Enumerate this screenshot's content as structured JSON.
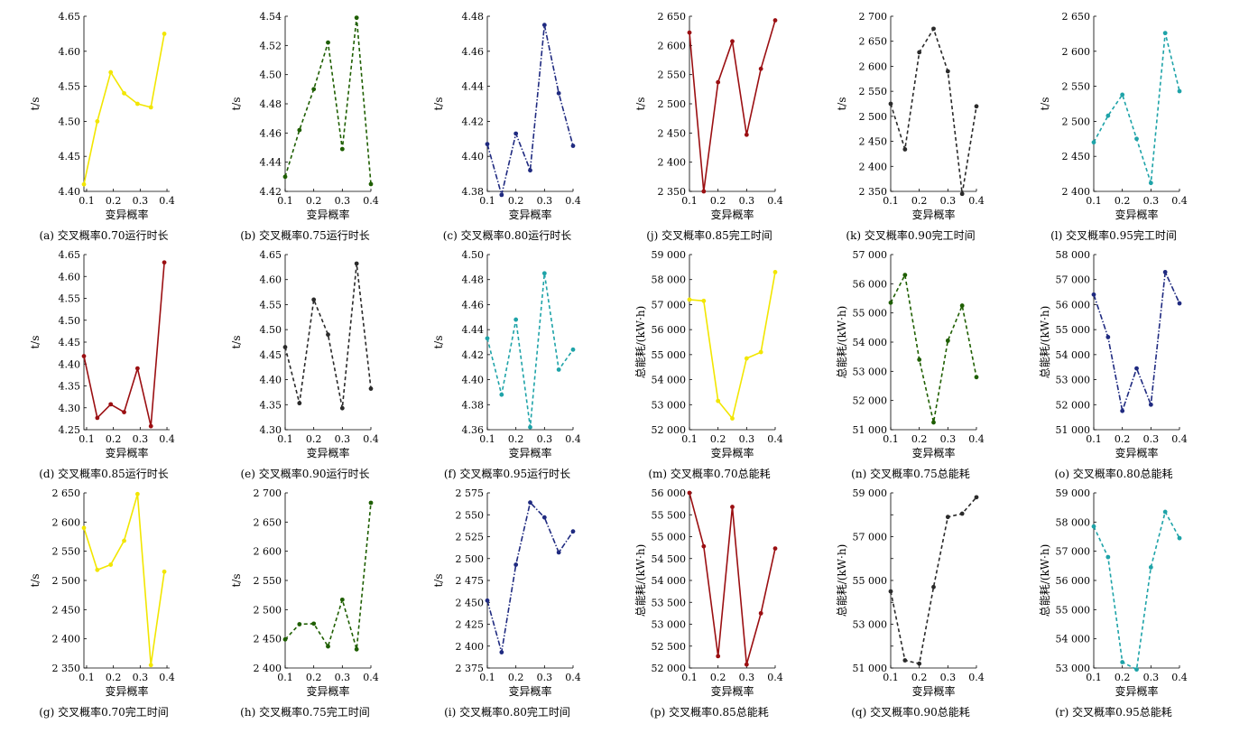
{
  "chart_data": [
    {
      "id": "a",
      "caption": "(a) 交叉概率0.70运行时长",
      "type": "line",
      "xlabel": "变异概率",
      "ylabel": "t/s",
      "xticks": [
        "0.1",
        "0.2",
        "0.3",
        "0.4"
      ],
      "yticks": [
        "4.40",
        "4.45",
        "4.50",
        "4.55",
        "4.60",
        "4.65"
      ],
      "xlim": [
        0.09,
        0.41
      ],
      "ylim": [
        4.4,
        4.65
      ],
      "color": "#f2e600",
      "dash": "solid",
      "x": [
        0.09,
        0.14,
        0.19,
        0.24,
        0.29,
        0.34,
        0.39
      ],
      "y": [
        4.41,
        4.5,
        4.57,
        4.54,
        4.525,
        4.52,
        4.625
      ]
    },
    {
      "id": "b",
      "caption": "(b) 交叉概率0.75运行时长",
      "type": "line",
      "xlabel": "变异概率",
      "ylabel": "t/s",
      "xticks": [
        "0.1",
        "0.2",
        "0.3",
        "0.4"
      ],
      "yticks": [
        "4.42",
        "4.44",
        "4.46",
        "4.48",
        "4.50",
        "4.52",
        "4.54"
      ],
      "xlim": [
        0.1,
        0.4
      ],
      "ylim": [
        4.42,
        4.54
      ],
      "color": "#1e5e00",
      "dash": "dash",
      "x": [
        0.1,
        0.15,
        0.2,
        0.25,
        0.3,
        0.35,
        0.4
      ],
      "y": [
        4.43,
        4.462,
        4.49,
        4.522,
        4.449,
        4.539,
        4.425
      ]
    },
    {
      "id": "c",
      "caption": "(c) 交叉概率0.80运行时长",
      "type": "line",
      "xlabel": "变异概率",
      "ylabel": "t/s",
      "xticks": [
        "0.1",
        "0.2",
        "0.3",
        "0.4"
      ],
      "yticks": [
        "4.38",
        "4.40",
        "4.42",
        "4.44",
        "4.46",
        "4.48"
      ],
      "xlim": [
        0.1,
        0.4
      ],
      "ylim": [
        4.38,
        4.48
      ],
      "color": "#1f2a80",
      "dash": "dashdot",
      "x": [
        0.1,
        0.15,
        0.2,
        0.25,
        0.3,
        0.35,
        0.4
      ],
      "y": [
        4.407,
        4.378,
        4.413,
        4.392,
        4.475,
        4.436,
        4.406
      ]
    },
    {
      "id": "j",
      "caption": "(j) 交叉概率0.85完工时间",
      "type": "line",
      "xlabel": "变异概率",
      "ylabel": "t/s",
      "xticks": [
        "0.1",
        "0.2",
        "0.3",
        "0.4"
      ],
      "yticks": [
        "2 350",
        "2 400",
        "2 450",
        "2 500",
        "2 550",
        "2 600",
        "2 650"
      ],
      "xlim": [
        0.1,
        0.4
      ],
      "ylim": [
        2350,
        2650
      ],
      "color": "#9b0f12",
      "dash": "solid",
      "x": [
        0.1,
        0.15,
        0.2,
        0.25,
        0.3,
        0.35,
        0.4
      ],
      "y": [
        2622,
        2350,
        2537,
        2607,
        2447,
        2560,
        2643
      ]
    },
    {
      "id": "k",
      "caption": "(k) 交叉概率0.90完工时间",
      "type": "line",
      "xlabel": "变异概率",
      "ylabel": "t/s",
      "xticks": [
        "0.1",
        "0.2",
        "0.3",
        "0.4"
      ],
      "yticks": [
        "2 350",
        "2 400",
        "2 450",
        "2 500",
        "2 550",
        "2 600",
        "2 650",
        "2 700"
      ],
      "xlim": [
        0.1,
        0.4
      ],
      "ylim": [
        2350,
        2700
      ],
      "color": "#2a2a2a",
      "dash": "dash",
      "x": [
        0.1,
        0.15,
        0.2,
        0.25,
        0.3,
        0.35,
        0.4
      ],
      "y": [
        2525,
        2434,
        2628,
        2675,
        2590,
        2345,
        2520
      ]
    },
    {
      "id": "l",
      "caption": "(l) 交叉概率0.95完工时间",
      "type": "line",
      "xlabel": "变异概率",
      "ylabel": "t/s",
      "xticks": [
        "0.1",
        "0.2",
        "0.3",
        "0.4"
      ],
      "yticks": [
        "2 400",
        "2 450",
        "2 500",
        "2 550",
        "2 600",
        "2 650"
      ],
      "xlim": [
        0.1,
        0.4
      ],
      "ylim": [
        2400,
        2650
      ],
      "color": "#1ea3a8",
      "dash": "dash",
      "x": [
        0.1,
        0.15,
        0.2,
        0.25,
        0.3,
        0.35,
        0.4
      ],
      "y": [
        2470,
        2508,
        2538,
        2475,
        2412,
        2626,
        2543
      ]
    },
    {
      "id": "d",
      "caption": "(d) 交叉概率0.85运行时长",
      "type": "line",
      "xlabel": "变异概率",
      "ylabel": "t/s",
      "xticks": [
        "0.1",
        "0.2",
        "0.3",
        "0.4"
      ],
      "yticks": [
        "4.25",
        "4.30",
        "4.35",
        "4.40",
        "4.45",
        "4.50",
        "4.55",
        "4.60",
        "4.65"
      ],
      "xlim": [
        0.09,
        0.41
      ],
      "ylim": [
        4.25,
        4.65
      ],
      "color": "#9b0f12",
      "dash": "solid",
      "x": [
        0.09,
        0.14,
        0.19,
        0.24,
        0.29,
        0.34,
        0.39
      ],
      "y": [
        4.418,
        4.277,
        4.308,
        4.29,
        4.39,
        4.258,
        4.632
      ]
    },
    {
      "id": "e",
      "caption": "(e) 交叉概率0.90运行时长",
      "type": "line",
      "xlabel": "变异概率",
      "ylabel": "t/s",
      "xticks": [
        "0.1",
        "0.2",
        "0.3",
        "0.4"
      ],
      "yticks": [
        "4.30",
        "4.35",
        "4.40",
        "4.45",
        "4.50",
        "4.55",
        "4.60",
        "4.65"
      ],
      "xlim": [
        0.1,
        0.4
      ],
      "ylim": [
        4.3,
        4.65
      ],
      "color": "#2a2a2a",
      "dash": "dash",
      "x": [
        0.1,
        0.15,
        0.2,
        0.25,
        0.3,
        0.35,
        0.4
      ],
      "y": [
        4.465,
        4.353,
        4.56,
        4.49,
        4.343,
        4.632,
        4.382
      ]
    },
    {
      "id": "f",
      "caption": "(f) 交叉概率0.95运行时长",
      "type": "line",
      "xlabel": "变异概率",
      "ylabel": "t/s",
      "xticks": [
        "0.1",
        "0.2",
        "0.3",
        "0.4"
      ],
      "yticks": [
        "4.36",
        "4.38",
        "4.40",
        "4.42",
        "4.44",
        "4.46",
        "4.48",
        "4.50"
      ],
      "xlim": [
        0.1,
        0.4
      ],
      "ylim": [
        4.36,
        4.5
      ],
      "color": "#1ea3a8",
      "dash": "dash",
      "x": [
        0.1,
        0.15,
        0.2,
        0.25,
        0.3,
        0.35,
        0.4
      ],
      "y": [
        4.433,
        4.388,
        4.448,
        4.362,
        4.485,
        4.408,
        4.424
      ]
    },
    {
      "id": "m",
      "caption": "(m) 交叉概率0.70总能耗",
      "type": "line",
      "xlabel": "变异概率",
      "ylabel": "总能耗/(kW·h)",
      "xticks": [
        "0.1",
        "0.2",
        "0.3",
        "0.4"
      ],
      "yticks": [
        "52 000",
        "53 000",
        "54 000",
        "55 000",
        "56 000",
        "57 000",
        "58 000",
        "59 000"
      ],
      "xlim": [
        0.1,
        0.4
      ],
      "ylim": [
        52000,
        59000
      ],
      "color": "#f2e600",
      "dash": "solid",
      "x": [
        0.1,
        0.15,
        0.2,
        0.25,
        0.3,
        0.35,
        0.4
      ],
      "y": [
        57200,
        57150,
        53150,
        52450,
        54850,
        55100,
        58300
      ]
    },
    {
      "id": "n",
      "caption": "(n) 交叉概率0.75总能耗",
      "type": "line",
      "xlabel": "变异概率",
      "ylabel": "总能耗/(kW·h)",
      "xticks": [
        "0.1",
        "0.2",
        "0.3",
        "0.4"
      ],
      "yticks": [
        "51 000",
        "52 000",
        "53 000",
        "54 000",
        "55 000",
        "56 000",
        "57 000"
      ],
      "xlim": [
        0.1,
        0.4
      ],
      "ylim": [
        51000,
        57000
      ],
      "color": "#1e5e00",
      "dash": "dash",
      "x": [
        0.1,
        0.15,
        0.2,
        0.25,
        0.3,
        0.35,
        0.4
      ],
      "y": [
        55350,
        56300,
        53400,
        51250,
        54050,
        55250,
        52800
      ]
    },
    {
      "id": "o",
      "caption": "(o) 交叉概率0.80总能耗",
      "type": "line",
      "xlabel": "变异概率",
      "ylabel": "总能耗/(kW·h)",
      "xticks": [
        "0.1",
        "0.2",
        "0.3",
        "0.4"
      ],
      "yticks": [
        "51 000",
        "52 000",
        "53 000",
        "54 000",
        "55 000",
        "56 000",
        "57 000",
        "58 000"
      ],
      "xlim": [
        0.1,
        0.4
      ],
      "ylim": [
        51000,
        58000
      ],
      "color": "#1f2a80",
      "dash": "dashdot",
      "x": [
        0.1,
        0.15,
        0.2,
        0.25,
        0.3,
        0.35,
        0.4
      ],
      "y": [
        56400,
        54700,
        51750,
        53450,
        52000,
        57300,
        56050
      ]
    },
    {
      "id": "g",
      "caption": "(g) 交叉概率0.70完工时间",
      "type": "line",
      "xlabel": "变异概率",
      "ylabel": "t/s",
      "xticks": [
        "0.1",
        "0.2",
        "0.3",
        "0.4"
      ],
      "yticks": [
        "2 350",
        "2 400",
        "2 450",
        "2 500",
        "2 550",
        "2 600",
        "2 650"
      ],
      "xlim": [
        0.09,
        0.41
      ],
      "ylim": [
        2350,
        2650
      ],
      "color": "#f2e600",
      "dash": "solid",
      "x": [
        0.09,
        0.14,
        0.19,
        0.24,
        0.29,
        0.34,
        0.39
      ],
      "y": [
        2590,
        2518,
        2527,
        2568,
        2648,
        2355,
        2515
      ]
    },
    {
      "id": "h",
      "caption": "(h) 交叉概率0.75完工时间",
      "type": "line",
      "xlabel": "变异概率",
      "ylabel": "t/s",
      "xticks": [
        "0.1",
        "0.2",
        "0.3",
        "0.4"
      ],
      "yticks": [
        "2 400",
        "2 450",
        "2 500",
        "2 550",
        "2 600",
        "2 650",
        "2 700"
      ],
      "xlim": [
        0.1,
        0.4
      ],
      "ylim": [
        2400,
        2700
      ],
      "color": "#1e5e00",
      "dash": "dash",
      "x": [
        0.1,
        0.15,
        0.2,
        0.25,
        0.3,
        0.35,
        0.4
      ],
      "y": [
        2449,
        2475,
        2476,
        2437,
        2517,
        2432,
        2683
      ]
    },
    {
      "id": "i",
      "caption": "(i) 交叉概率0.80完工时间",
      "type": "line",
      "xlabel": "变异概率",
      "ylabel": "t/s",
      "xticks": [
        "0.1",
        "0.2",
        "0.3",
        "0.4"
      ],
      "yticks": [
        "2 375",
        "2 400",
        "2 425",
        "2 450",
        "2 475",
        "2 500",
        "2 525",
        "2 550",
        "2 575"
      ],
      "xlim": [
        0.1,
        0.4
      ],
      "ylim": [
        2375,
        2575
      ],
      "color": "#1f2a80",
      "dash": "dashdot",
      "x": [
        0.1,
        0.15,
        0.2,
        0.25,
        0.3,
        0.35,
        0.4
      ],
      "y": [
        2452,
        2393,
        2493,
        2564,
        2547,
        2507,
        2531
      ]
    },
    {
      "id": "p",
      "caption": "(p) 交叉概率0.85总能耗",
      "type": "line",
      "xlabel": "变异概率",
      "ylabel": "总能耗/(kW·h)",
      "xticks": [
        "0.1",
        "0.2",
        "0.3",
        "0.4"
      ],
      "yticks": [
        "52 000",
        "52 500",
        "53 000",
        "53 500",
        "54 000",
        "54 500",
        "55 000",
        "55 500",
        "56 000"
      ],
      "xlim": [
        0.1,
        0.4
      ],
      "ylim": [
        52000,
        56000
      ],
      "color": "#9b0f12",
      "dash": "solid",
      "x": [
        0.1,
        0.15,
        0.2,
        0.25,
        0.3,
        0.35,
        0.4
      ],
      "y": [
        56000,
        54780,
        52270,
        55680,
        52080,
        53250,
        54730
      ]
    },
    {
      "id": "q",
      "caption": "(q) 交叉概率0.90总能耗",
      "type": "line",
      "xlabel": "变异概率",
      "ylabel": "总能耗/(kW·h)",
      "xticks": [
        "0.1",
        "0.2",
        "0.3",
        "0.4"
      ],
      "yticks": [
        "51 000",
        "53 000",
        "55 000",
        "57 000",
        "59 000"
      ],
      "yticks_all": [
        "51 000",
        "52 000",
        "53 000",
        "54 000",
        "55 000",
        "56 000",
        "57 000",
        "58 000",
        "59 000"
      ],
      "xlim": [
        0.1,
        0.4
      ],
      "ylim": [
        51000,
        59000
      ],
      "color": "#2a2a2a",
      "dash": "dash",
      "x": [
        0.1,
        0.15,
        0.2,
        0.25,
        0.3,
        0.35,
        0.4
      ],
      "y": [
        54500,
        51350,
        51200,
        54700,
        57900,
        58050,
        58800
      ]
    },
    {
      "id": "r",
      "caption": "(r) 交叉概率0.95总能耗",
      "type": "line",
      "xlabel": "变异概率",
      "ylabel": "总能耗/(kW·h)",
      "xticks": [
        "0.1",
        "0.2",
        "0.3",
        "0.4"
      ],
      "yticks": [
        "53 000",
        "54 000",
        "55 000",
        "56 000",
        "57 000",
        "58 000",
        "59 000"
      ],
      "xlim": [
        0.1,
        0.4
      ],
      "ylim": [
        53000,
        59000
      ],
      "color": "#1ea3a8",
      "dash": "dash",
      "x": [
        0.1,
        0.15,
        0.2,
        0.25,
        0.3,
        0.35,
        0.4
      ],
      "y": [
        57850,
        56800,
        53200,
        52950,
        56450,
        58350,
        57450
      ]
    }
  ]
}
